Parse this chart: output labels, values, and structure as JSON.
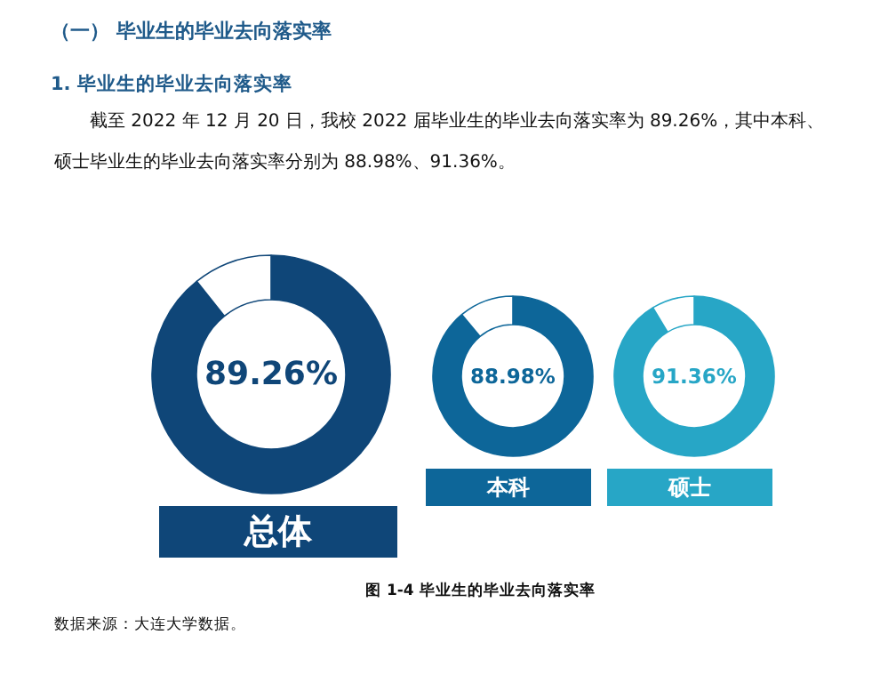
{
  "chart_data": [
    {
      "type": "donut",
      "title": "（一）    毕业生的毕业去向落实率",
      "subtitle": "1.    毕业生的毕业去向落实率",
      "annotations": [
        "截至 2022 年 12 月 20 日，我校 2022 届毕业生的毕业去向落实率为 89.26%，其中本科、",
        "硕士毕业生的毕业去向落实率分别为 88.98%、91.36%。",
        "图 1-4        毕业生的毕业去向落实率",
        "数据来源：大连大学数据。"
      ],
      "categories": [
        null,
        null
      ],
      "values": [
        89.26,
        10.74
      ],
      "colors": [
        "#0f4678",
        "#ffffff"
      ],
      "value_labels": [
        "89.26%",
        null
      ],
      "xlabel": "总体"
    },
    {
      "type": "donut",
      "categories": [
        null,
        null
      ],
      "values": [
        88.98,
        11.02
      ],
      "colors": [
        "#0d6699",
        "#ffffff"
      ],
      "value_labels": [
        "88.98%",
        null
      ],
      "xlabel": "本科"
    },
    {
      "type": "donut",
      "categories": [
        null,
        null
      ],
      "values": [
        91.36,
        8.64
      ],
      "colors": [
        "#27a6c6",
        "#ffffff"
      ],
      "value_labels": [
        "91.36%",
        null
      ],
      "xlabel": "硕士"
    }
  ]
}
